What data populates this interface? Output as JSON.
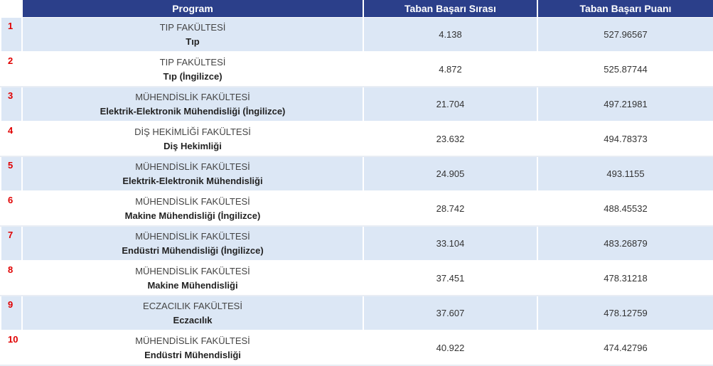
{
  "table": {
    "headers": {
      "program": "Program",
      "sira": "Taban Başarı Sırası",
      "puan": "Taban Başarı Puanı"
    },
    "rows": [
      {
        "rank": "1",
        "faculty": "TIP FAKÜLTESİ",
        "program": "Tıp",
        "sira": "4.138",
        "puan": "527.96567"
      },
      {
        "rank": "2",
        "faculty": "TIP FAKÜLTESİ",
        "program": "Tıp (İngilizce)",
        "sira": "4.872",
        "puan": "525.87744"
      },
      {
        "rank": "3",
        "faculty": "MÜHENDİSLİK FAKÜLTESİ",
        "program": "Elektrik-Elektronik Mühendisliği (İngilizce)",
        "sira": "21.704",
        "puan": "497.21981"
      },
      {
        "rank": "4",
        "faculty": "DİŞ HEKİMLİĞİ FAKÜLTESİ",
        "program": "Diş Hekimliği",
        "sira": "23.632",
        "puan": "494.78373"
      },
      {
        "rank": "5",
        "faculty": "MÜHENDİSLİK FAKÜLTESİ",
        "program": "Elektrik-Elektronik Mühendisliği",
        "sira": "24.905",
        "puan": "493.1155"
      },
      {
        "rank": "6",
        "faculty": "MÜHENDİSLİK FAKÜLTESİ",
        "program": "Makine Mühendisliği (İngilizce)",
        "sira": "28.742",
        "puan": "488.45532"
      },
      {
        "rank": "7",
        "faculty": "MÜHENDİSLİK FAKÜLTESİ",
        "program": "Endüstri Mühendisliği (İngilizce)",
        "sira": "33.104",
        "puan": "483.26879"
      },
      {
        "rank": "8",
        "faculty": "MÜHENDİSLİK FAKÜLTESİ",
        "program": "Makine Mühendisliği",
        "sira": "37.451",
        "puan": "478.31218"
      },
      {
        "rank": "9",
        "faculty": "ECZACILIK FAKÜLTESİ",
        "program": "Eczacılık",
        "sira": "37.607",
        "puan": "478.12759"
      },
      {
        "rank": "10",
        "faculty": "MÜHENDİSLİK FAKÜLTESİ",
        "program": "Endüstri Mühendisliği",
        "sira": "40.922",
        "puan": "474.42796"
      }
    ]
  }
}
